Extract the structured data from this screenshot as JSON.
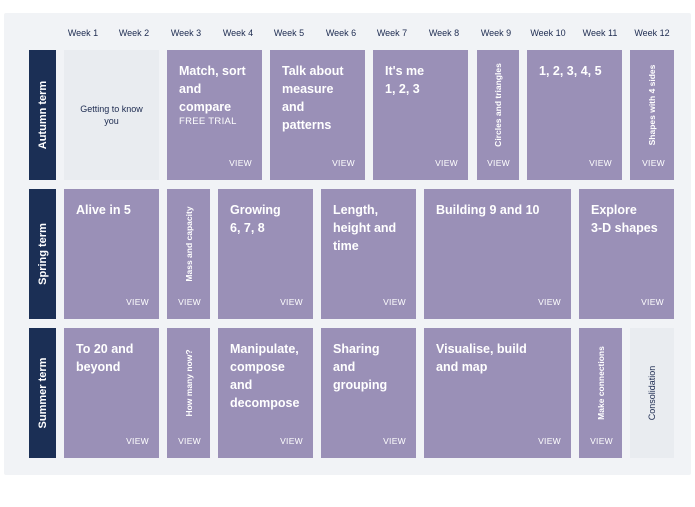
{
  "weeks": [
    "Week 1",
    "Week 2",
    "Week 3",
    "Week 4",
    "Week 5",
    "Week 6",
    "Week 7",
    "Week 8",
    "Week 9",
    "Week 10",
    "Week 11",
    "Week 12"
  ],
  "terms": [
    {
      "label": "Autumn term"
    },
    {
      "label": "Spring term"
    },
    {
      "label": "Summer term"
    }
  ],
  "view_label": "VIEW",
  "autumn": {
    "c0": {
      "title": "Getting to know you"
    },
    "c1": {
      "title": "Match, sort\nand\ncompare",
      "sub": "FREE TRIAL"
    },
    "c2": {
      "title": "Talk about\nmeasure\nand\npatterns"
    },
    "c3": {
      "title": "It's me\n1, 2, 3"
    },
    "c4": {
      "title": "Circles and triangles"
    },
    "c5": {
      "title": "1, 2, 3, 4, 5"
    },
    "c6": {
      "title": "Shapes with 4 sides"
    }
  },
  "spring": {
    "c0": {
      "title": "Alive in 5"
    },
    "c1": {
      "title": "Mass and capacity"
    },
    "c2": {
      "title": "Growing\n6, 7, 8"
    },
    "c3": {
      "title": "Length,\nheight and\ntime"
    },
    "c4": {
      "title": "Building 9 and 10"
    },
    "c5": {
      "title": "Explore\n3-D shapes"
    }
  },
  "summer": {
    "c0": {
      "title": "To 20 and\nbeyond"
    },
    "c1": {
      "title": "How many now?"
    },
    "c2": {
      "title": "Manipulate,\ncompose\nand\ndecompose"
    },
    "c3": {
      "title": "Sharing\nand\ngrouping"
    },
    "c4": {
      "title": "Visualise, build\nand map"
    },
    "c5": {
      "title": "Make connections"
    },
    "c6": {
      "title": "Consolidation"
    }
  },
  "colors": {
    "card": "#9a90b7",
    "term": "#1b2f55",
    "light_card": "#e9ecf0",
    "text_dark": "#1d2b50"
  }
}
